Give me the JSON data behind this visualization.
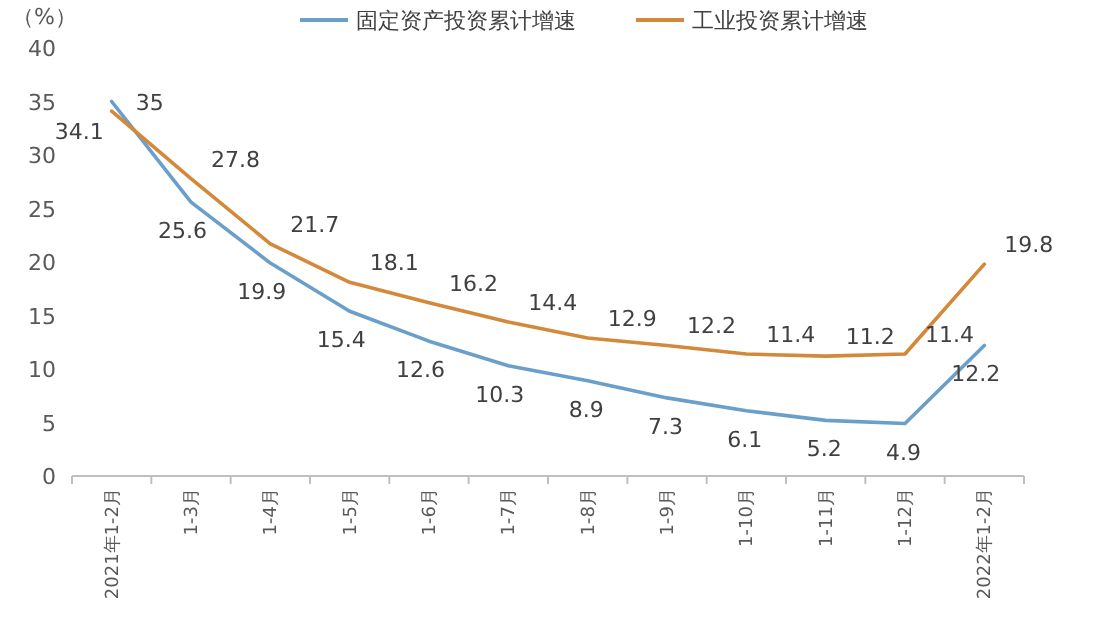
{
  "chart_data": {
    "type": "line",
    "ylabel": "（%）",
    "categories": [
      "2021年1-2月",
      "1-3月",
      "1-4月",
      "1-5月",
      "1-6月",
      "1-7月",
      "1-8月",
      "1-9月",
      "1-10月",
      "1-11月",
      "1-12月",
      "2022年1-2月"
    ],
    "series": [
      {
        "name": "固定资产投资累计增速",
        "color": "#6a9fc9",
        "values": [
          35,
          25.6,
          19.9,
          15.4,
          12.6,
          10.3,
          8.9,
          7.3,
          6.1,
          5.2,
          4.9,
          12.2
        ]
      },
      {
        "name": "工业投资累计增速",
        "color": "#d4883a",
        "values": [
          34.1,
          27.8,
          21.7,
          18.1,
          16.2,
          14.4,
          12.9,
          12.2,
          11.4,
          11.2,
          11.4,
          19.8
        ]
      }
    ],
    "ylim": [
      0,
      40
    ],
    "yticks": [
      0,
      5,
      10,
      15,
      20,
      25,
      30,
      35,
      40
    ],
    "legend": "top",
    "data_labels": true
  }
}
